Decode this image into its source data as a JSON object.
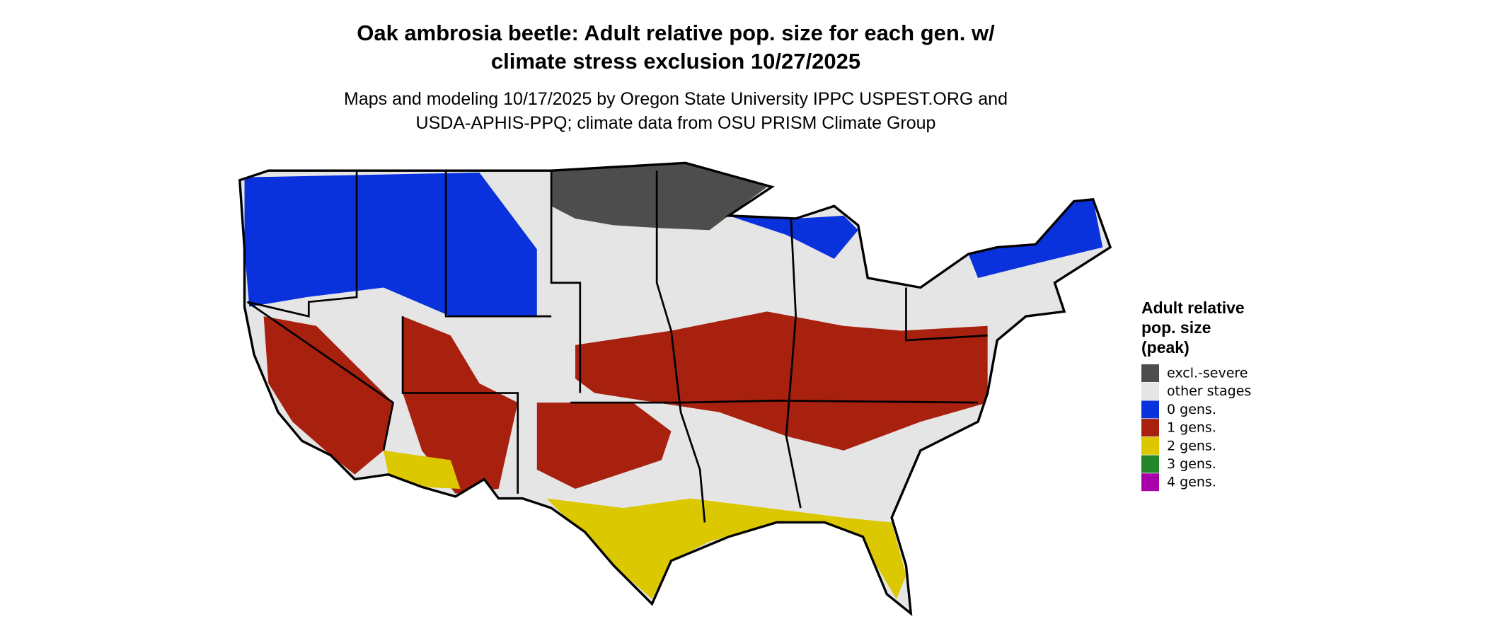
{
  "title_lines": [
    "Oak ambrosia beetle: Adult relative pop. size for each gen. w/",
    "climate stress exclusion 10/27/2025"
  ],
  "subtitle_lines": [
    "Maps and modeling 10/17/2025 by Oregon State University IPPC USPEST.ORG and",
    "USDA-APHIS-PPQ; climate data from OSU PRISM Climate Group"
  ],
  "legend": {
    "title_lines": [
      "Adult relative",
      "pop. size",
      "(peak)"
    ],
    "items": [
      {
        "label": "excl.-severe",
        "color": "#4d4d4d"
      },
      {
        "label": "other stages",
        "color": "#e5e5e5"
      },
      {
        "label": "0 gens.",
        "color": "#0a32dc"
      },
      {
        "label": "1 gens.",
        "color": "#a8200e"
      },
      {
        "label": "2 gens.",
        "color": "#dcc800"
      },
      {
        "label": "3 gens.",
        "color": "#22882a"
      },
      {
        "label": "4 gens.",
        "color": "#a800a8"
      }
    ]
  }
}
